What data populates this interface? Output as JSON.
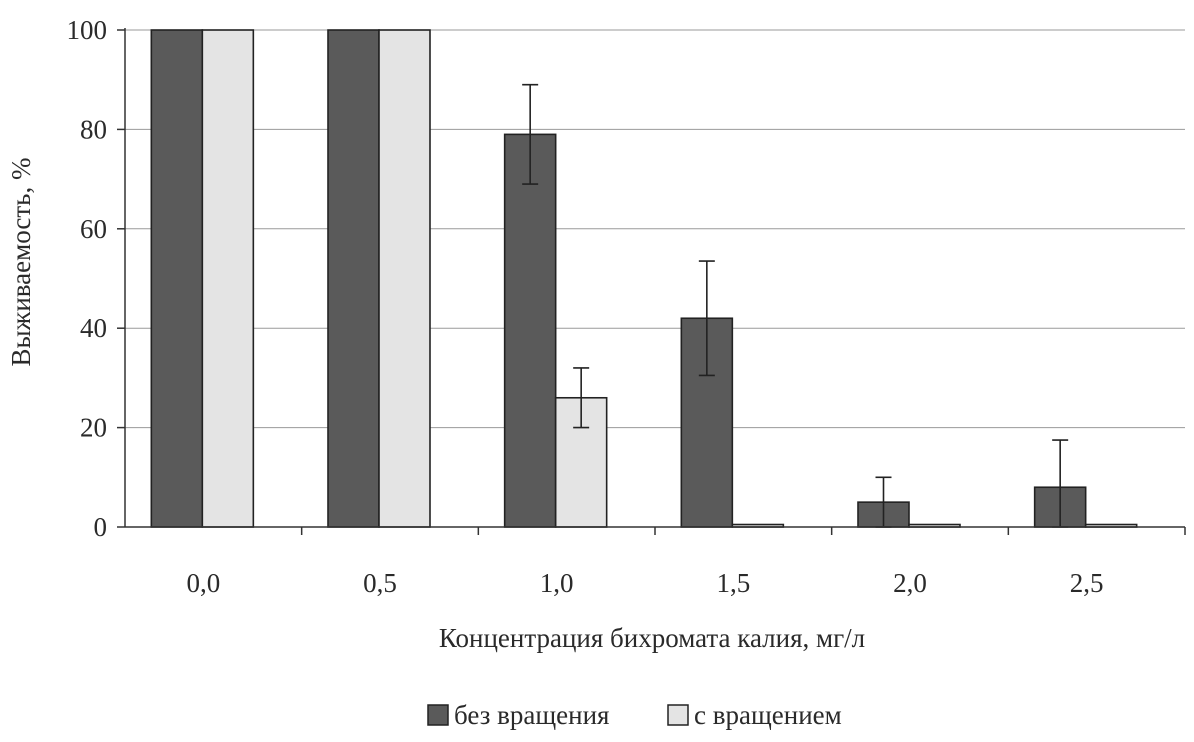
{
  "chart_data": {
    "type": "bar",
    "title": "",
    "xlabel": "Концентрация бихромата калия, мг/л",
    "ylabel": "Выживаемость, %",
    "categories": [
      "0,0",
      "0,5",
      "1,0",
      "1,5",
      "2,0",
      "2,5"
    ],
    "yticks": [
      "0",
      "20",
      "40",
      "60",
      "80",
      "100"
    ],
    "ylim": [
      0,
      100
    ],
    "grid": true,
    "legend_position": "bottom",
    "series": [
      {
        "name": "без вращения",
        "color": "#5a5a5a",
        "values": [
          100,
          100,
          79,
          42,
          5,
          8
        ],
        "errors": [
          0,
          0,
          10,
          11.5,
          5,
          9.5
        ]
      },
      {
        "name": "с вращением",
        "color": "#e4e4e4",
        "values": [
          100,
          100,
          26,
          0.5,
          0.5,
          0.5
        ],
        "errors": [
          0,
          0,
          6,
          0,
          0,
          0
        ]
      }
    ]
  }
}
